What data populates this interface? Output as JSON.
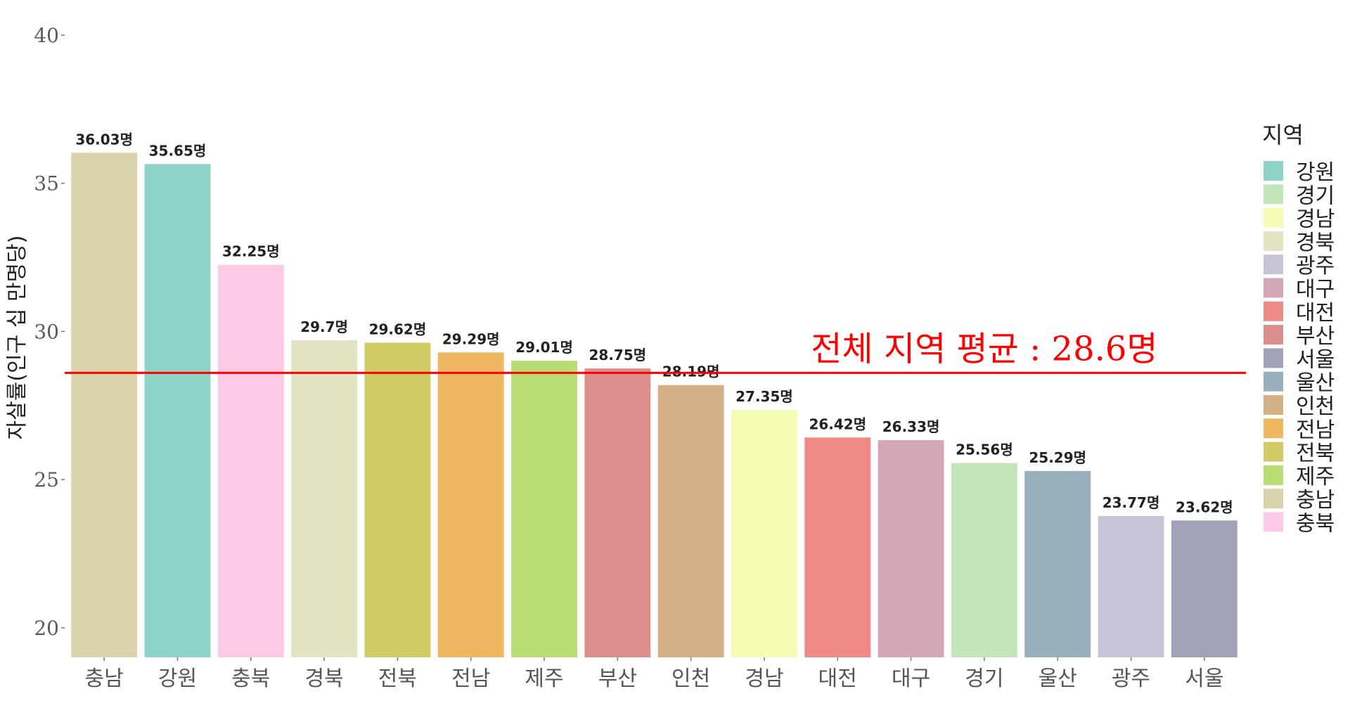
{
  "chart_data": {
    "type": "bar",
    "ylabel": "자살률(인구 십 만명당)",
    "xlabel": "",
    "ylim": [
      19,
      40
    ],
    "yticks": [
      20,
      25,
      30,
      35,
      40
    ],
    "unit_suffix": "명",
    "categories": [
      "충남",
      "강원",
      "충북",
      "경북",
      "전북",
      "전남",
      "제주",
      "부산",
      "인천",
      "경남",
      "대전",
      "대구",
      "경기",
      "울산",
      "광주",
      "서울"
    ],
    "values": [
      36.03,
      35.65,
      32.25,
      29.7,
      29.62,
      29.29,
      29.01,
      28.75,
      28.19,
      27.35,
      26.42,
      26.33,
      25.56,
      25.29,
      23.77,
      23.62
    ],
    "value_labels": [
      "36.03명",
      "35.65명",
      "32.25명",
      "29.7명",
      "29.62명",
      "29.29명",
      "29.01명",
      "28.75명",
      "28.19명",
      "27.35명",
      "26.42명",
      "26.33명",
      "25.56명",
      "25.29명",
      "23.77명",
      "23.62명"
    ],
    "colors": {
      "강원": "#8ed3c7",
      "경기": "#c2e6b9",
      "경남": "#f5fbb3",
      "경북": "#e2e3c2",
      "광주": "#c6c4d6",
      "대구": "#d4a7b7",
      "대전": "#ee8b86",
      "부산": "#db8e8b",
      "서울": "#a1a2b9",
      "울산": "#98b0bc",
      "인천": "#d4b087",
      "전남": "#f0b761",
      "전북": "#d1cb66",
      "제주": "#b8dd72",
      "충남": "#d9d3ab",
      "충북": "#fccae4"
    },
    "reference_line": {
      "value": 28.6,
      "color": "#ff0000",
      "label": "전체 지역 평균 : 28.6명"
    },
    "legend": {
      "title": "지역",
      "placement": "right",
      "entries": [
        "강원",
        "경기",
        "경남",
        "경북",
        "광주",
        "대구",
        "대전",
        "부산",
        "서울",
        "울산",
        "인천",
        "전남",
        "전북",
        "제주",
        "충남",
        "충북"
      ]
    },
    "grid": false
  }
}
